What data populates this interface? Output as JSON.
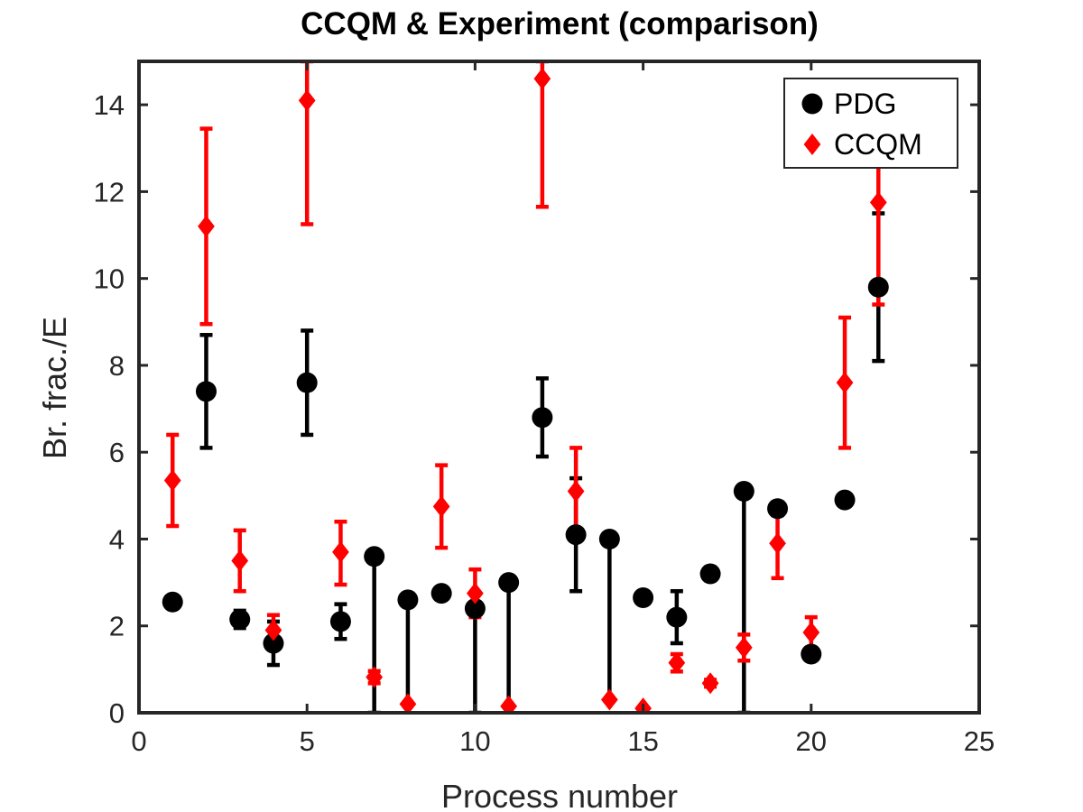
{
  "chart_data": {
    "type": "scatter",
    "title": "CCQM & Experiment (comparison)",
    "xlabel": "Process number",
    "ylabel": "Br. frac./E",
    "xlim": [
      0,
      25
    ],
    "ylim": [
      0,
      15
    ],
    "xticks": [
      0,
      5,
      10,
      15,
      20,
      25
    ],
    "yticks": [
      0,
      2,
      4,
      6,
      8,
      10,
      12,
      14
    ],
    "grid": false,
    "legend_position": "top-right",
    "series": [
      {
        "name": "PDG",
        "marker": "circle",
        "color": "#000000",
        "points": [
          {
            "x": 1,
            "y": 2.55
          },
          {
            "x": 2,
            "y": 7.4,
            "lo": 6.1,
            "hi": 8.7
          },
          {
            "x": 3,
            "y": 2.15,
            "lo": 1.95,
            "hi": 2.35
          },
          {
            "x": 4,
            "y": 1.6,
            "lo": 1.1,
            "hi": 2.1
          },
          {
            "x": 5,
            "y": 7.6,
            "lo": 6.4,
            "hi": 8.8
          },
          {
            "x": 6,
            "y": 2.1,
            "lo": 1.7,
            "hi": 2.5
          },
          {
            "x": 7,
            "y": 3.6,
            "lo": 0,
            "hi": 3.6
          },
          {
            "x": 8,
            "y": 2.6,
            "lo": 0.2,
            "hi": 2.6
          },
          {
            "x": 9,
            "y": 2.75
          },
          {
            "x": 10,
            "y": 2.4,
            "lo": 0,
            "hi": 2.4
          },
          {
            "x": 11,
            "y": 3.0,
            "lo": 0.15,
            "hi": 3.0
          },
          {
            "x": 12,
            "y": 6.8,
            "lo": 5.9,
            "hi": 7.7
          },
          {
            "x": 13,
            "y": 4.1,
            "lo": 2.8,
            "hi": 5.4
          },
          {
            "x": 14,
            "y": 4.0,
            "lo": 0.3,
            "hi": 4.0
          },
          {
            "x": 15,
            "y": 2.65
          },
          {
            "x": 16,
            "y": 2.2,
            "lo": 1.6,
            "hi": 2.8
          },
          {
            "x": 17,
            "y": 3.2,
            "lo": 3.05,
            "hi": 3.35
          },
          {
            "x": 18,
            "y": 5.1,
            "lo": 0,
            "hi": 5.1
          },
          {
            "x": 19,
            "y": 4.7,
            "lo": 4.55,
            "hi": 4.85
          },
          {
            "x": 20,
            "y": 1.35
          },
          {
            "x": 21,
            "y": 4.9
          },
          {
            "x": 22,
            "y": 9.8,
            "lo": 8.1,
            "hi": 11.5
          }
        ]
      },
      {
        "name": "CCQM",
        "marker": "diamond",
        "color": "#ff0000",
        "points": [
          {
            "x": 1,
            "y": 5.35,
            "lo": 4.3,
            "hi": 6.4
          },
          {
            "x": 2,
            "y": 11.2,
            "lo": 8.95,
            "hi": 13.45
          },
          {
            "x": 3,
            "y": 3.5,
            "lo": 2.8,
            "hi": 4.2
          },
          {
            "x": 4,
            "y": 1.9,
            "lo": 1.55,
            "hi": 2.25
          },
          {
            "x": 5,
            "y": 14.1,
            "lo": 11.25,
            "hi": 15.0
          },
          {
            "x": 6,
            "y": 3.7,
            "lo": 2.95,
            "hi": 4.4
          },
          {
            "x": 7,
            "y": 0.82,
            "lo": 0.68,
            "hi": 0.96
          },
          {
            "x": 8,
            "y": 0.2
          },
          {
            "x": 9,
            "y": 4.75,
            "lo": 3.8,
            "hi": 5.7
          },
          {
            "x": 10,
            "y": 2.75,
            "lo": 2.2,
            "hi": 3.3
          },
          {
            "x": 11,
            "y": 0.15
          },
          {
            "x": 12,
            "y": 14.6,
            "lo": 11.65,
            "hi": 15.0
          },
          {
            "x": 13,
            "y": 5.1,
            "lo": 4.1,
            "hi": 6.1
          },
          {
            "x": 14,
            "y": 0.3
          },
          {
            "x": 15,
            "y": 0.1
          },
          {
            "x": 16,
            "y": 1.15,
            "lo": 0.95,
            "hi": 1.35
          },
          {
            "x": 17,
            "y": 0.68,
            "lo": 0.6,
            "hi": 0.76
          },
          {
            "x": 18,
            "y": 1.5,
            "lo": 1.2,
            "hi": 1.8
          },
          {
            "x": 19,
            "y": 3.9,
            "lo": 3.1,
            "hi": 4.65
          },
          {
            "x": 20,
            "y": 1.85,
            "lo": 1.5,
            "hi": 2.2
          },
          {
            "x": 21,
            "y": 7.6,
            "lo": 6.1,
            "hi": 9.1
          },
          {
            "x": 22,
            "y": 11.75,
            "lo": 9.4,
            "hi": 14.1
          }
        ]
      }
    ]
  }
}
